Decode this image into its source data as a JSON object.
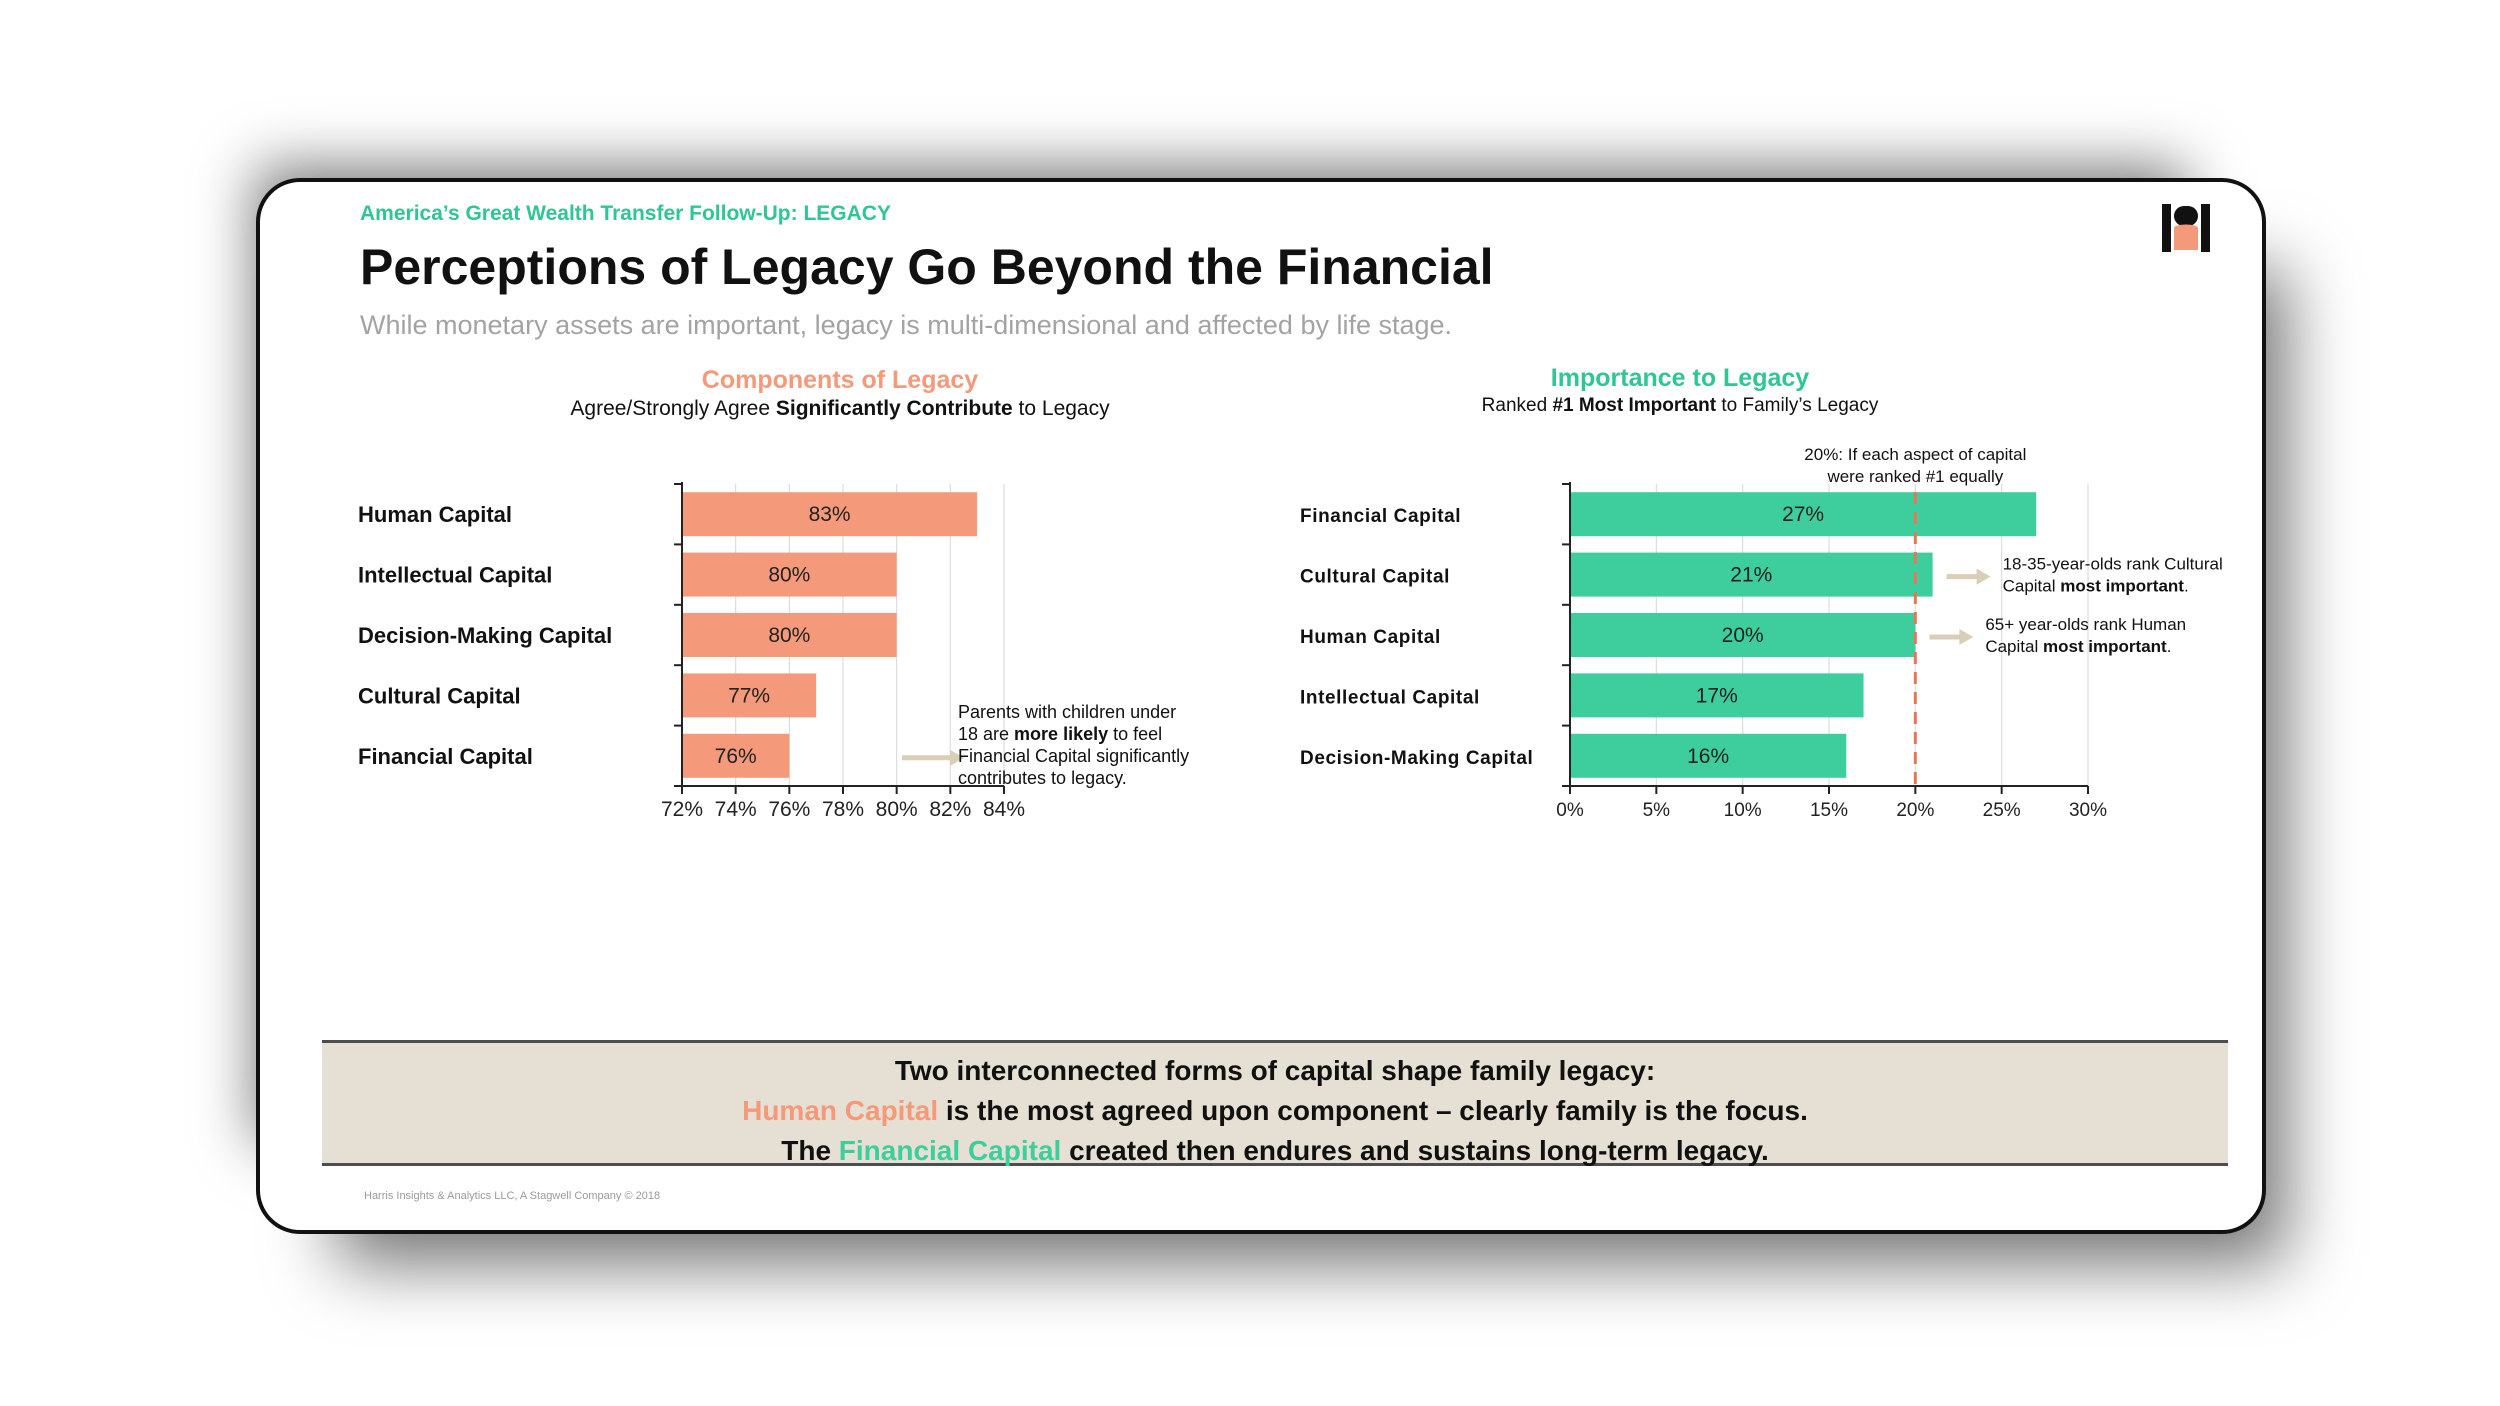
{
  "slide": {
    "kicker": "America’s Great Wealth Transfer Follow-Up: LEGACY",
    "title": "Perceptions of Legacy Go Beyond the Financial",
    "subtitle": "While monetary assets are important, legacy is multi-dimensional and affected by life stage.",
    "footer": "Harris Insights & Analytics LLC, A Stagwell Company © 2018"
  },
  "colors": {
    "salmon": "#f4997a",
    "teal": "#3ecd9c",
    "kicker": "#2fc693",
    "dashed": "#e8755a",
    "arrow": "#d9ceb8",
    "banner": "#e5e0d3"
  },
  "left_head": {
    "title": "Components of Legacy",
    "sub_pre": "Agree/Strongly Agree ",
    "sub_bold": "Significantly Contribute",
    "sub_post": " to Legacy"
  },
  "right_head": {
    "title": "Importance to Legacy",
    "sub_pre": "Ranked ",
    "sub_bold": "#1 Most Important",
    "sub_post": " to Family’s Legacy"
  },
  "chart_data": [
    {
      "type": "bar",
      "orientation": "horizontal",
      "title": "Components of Legacy",
      "subtitle": "Agree/Strongly Agree Significantly Contribute to Legacy",
      "categories": [
        "Human Capital",
        "Intellectual Capital",
        "Decision-Making Capital",
        "Cultural Capital",
        "Financial Capital"
      ],
      "values": [
        83,
        80,
        80,
        77,
        76
      ],
      "value_labels": [
        "83%",
        "80%",
        "80%",
        "77%",
        "76%"
      ],
      "xlim": [
        72,
        84
      ],
      "xticks": [
        72,
        74,
        76,
        78,
        80,
        82,
        84
      ],
      "xtick_labels": [
        "72%",
        "74%",
        "76%",
        "78%",
        "80%",
        "82%",
        "84%"
      ],
      "grid": true,
      "color": "#f4997a",
      "annotations": [
        {
          "target": "Financial Capital",
          "lines": [
            [
              {
                "t": "Parents with children under"
              }
            ],
            [
              {
                "t": "18 are "
              },
              {
                "t": "more likely",
                "b": true
              },
              {
                "t": " to feel"
              }
            ],
            [
              {
                "t": "Financial Capital significantly"
              }
            ],
            [
              {
                "t": "contributes to legacy."
              }
            ]
          ]
        }
      ]
    },
    {
      "type": "bar",
      "orientation": "horizontal",
      "title": "Importance to Legacy",
      "subtitle": "Ranked #1 Most Important to Family’s Legacy",
      "categories": [
        "Financial Capital",
        "Cultural Capital",
        "Human Capital",
        "Intellectual Capital",
        "Decision-Making Capital"
      ],
      "values": [
        27,
        21,
        20,
        17,
        16
      ],
      "value_labels": [
        "27%",
        "21%",
        "20%",
        "17%",
        "16%"
      ],
      "xlim": [
        0,
        30
      ],
      "xticks": [
        0,
        5,
        10,
        15,
        20,
        25,
        30
      ],
      "xtick_labels": [
        "0%",
        "5%",
        "10%",
        "15%",
        "20%",
        "25%",
        "30%"
      ],
      "grid": true,
      "color": "#3ecd9c",
      "reference_line": {
        "value": 20,
        "style": "dashed",
        "label_lines": [
          "20%: If each aspect of capital",
          "were ranked #1 equally"
        ]
      },
      "annotations": [
        {
          "target": "Cultural Capital",
          "lines": [
            [
              {
                "t": "18-35-year-olds rank Cultural"
              }
            ],
            [
              {
                "t": "Capital "
              },
              {
                "t": "most important",
                "b": true
              },
              {
                "t": "."
              }
            ]
          ]
        },
        {
          "target": "Human Capital",
          "lines": [
            [
              {
                "t": "65+ year-olds rank Human"
              }
            ],
            [
              {
                "t": "Capital "
              },
              {
                "t": "most important",
                "b": true
              },
              {
                "t": "."
              }
            ]
          ]
        }
      ]
    }
  ],
  "banner": {
    "line1": "Two interconnected forms of capital shape family legacy:",
    "line2_highlight": "Human Capital",
    "line2_rest": " is the most agreed upon component – clearly family is the focus.",
    "line3_pre": "The ",
    "line3_highlight": "Financial Capital",
    "line3_rest": " created then endures and sustains long-term legacy."
  }
}
